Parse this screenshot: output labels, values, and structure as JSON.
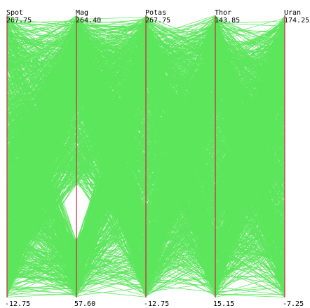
{
  "chart_data": {
    "type": "parallel_coordinates",
    "title": "",
    "axes": [
      {
        "name": "Spot",
        "max": "267.75",
        "min": "-12.75",
        "max_value": 267.75,
        "min_value": -12.75
      },
      {
        "name": "Mag",
        "max": "264.40",
        "min": "57.60",
        "max_value": 264.4,
        "min_value": 57.6
      },
      {
        "name": "Potas",
        "max": "267.75",
        "min": "-12.75",
        "max_value": 267.75,
        "min_value": -12.75
      },
      {
        "name": "Thor",
        "max": "143.85",
        "min": "15.15",
        "max_value": 143.85,
        "min_value": 15.15
      },
      {
        "name": "Uran",
        "max": "174.25",
        "min": "-7.25",
        "max_value": 174.25,
        "min_value": -7.25
      }
    ],
    "line_color": "#5ce65c",
    "axis_color": "#d0204a",
    "grid": false,
    "legend": "none"
  }
}
